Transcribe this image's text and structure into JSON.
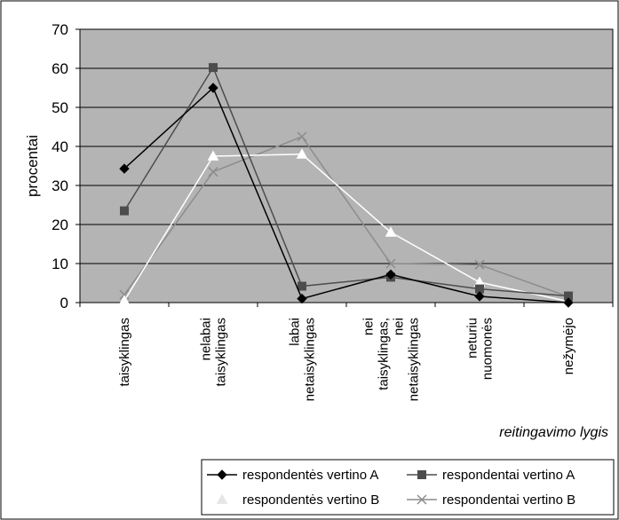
{
  "chart_data": {
    "type": "line",
    "categories": [
      [
        "taisyklingas"
      ],
      [
        "nelabai",
        "taisyklingas"
      ],
      [
        "labai",
        "netaisyklingas"
      ],
      [
        "nei",
        "taisyklingas,",
        "nei",
        "netaisyklingas"
      ],
      [
        "neturiu",
        "nuomonės"
      ],
      [
        "nežymėjo"
      ]
    ],
    "ylabel": "procentai",
    "xlabel": "reitingavimo lygis",
    "ylim": [
      0,
      70
    ],
    "yticks": [
      0,
      10,
      20,
      30,
      40,
      50,
      60,
      70
    ],
    "grid": true,
    "legend_position": "bottom-right",
    "plot_background": "#b4b4b4",
    "series": [
      {
        "name": "respondentės vertino A",
        "values": [
          34.3,
          55.0,
          1.0,
          7.2,
          1.6,
          0.0
        ],
        "color": "#000000",
        "marker": "diamond"
      },
      {
        "name": "respondentai vertino A",
        "values": [
          23.5,
          60.2,
          4.2,
          6.5,
          3.5,
          1.7
        ],
        "color": "#4d4d4d",
        "marker": "square"
      },
      {
        "name": "respondentės vertino B",
        "values": [
          0.5,
          37.5,
          38.0,
          18.0,
          5.2,
          0.3
        ],
        "color": "#ffffff",
        "marker": "triangle"
      },
      {
        "name": "respondentai vertino B",
        "values": [
          2.0,
          33.5,
          42.5,
          10.0,
          9.7,
          1.5
        ],
        "color": "#8c8c8c",
        "marker": "x"
      }
    ]
  }
}
